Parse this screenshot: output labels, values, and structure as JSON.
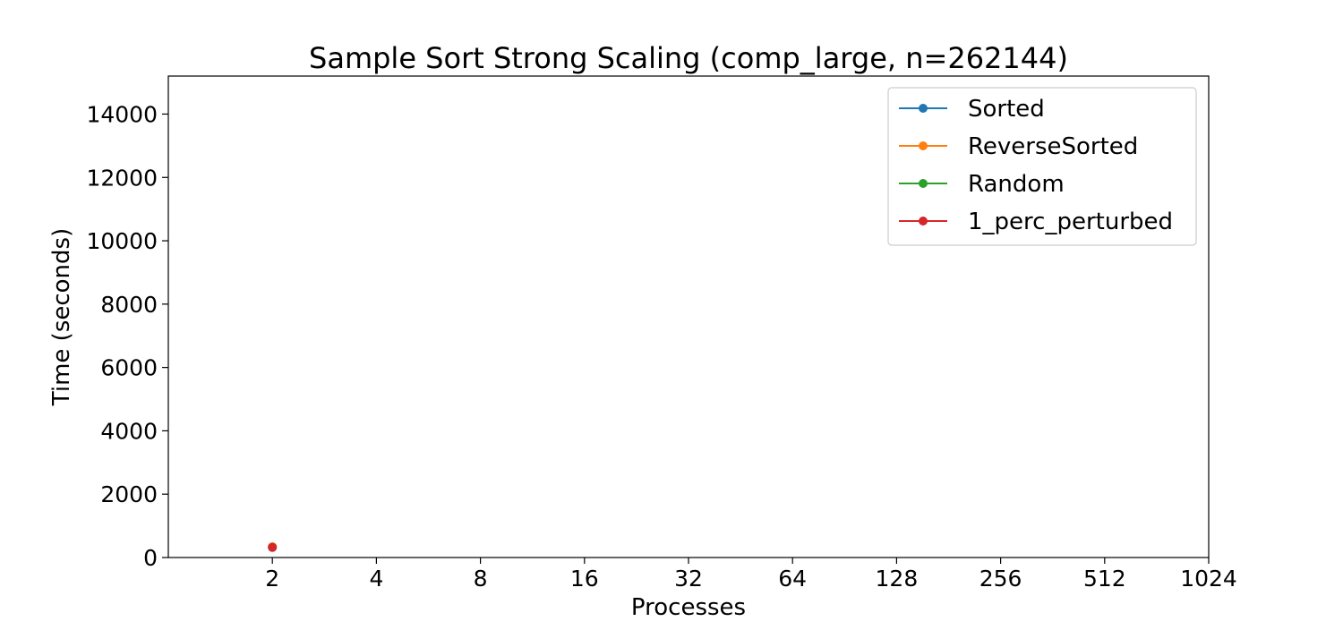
{
  "chart_data": {
    "type": "line",
    "title": "Sample Sort Strong Scaling (comp_large, n=262144)",
    "xlabel": "Processes",
    "ylabel": "Time (seconds)",
    "x_scale": "log2",
    "x_ticks": [
      "2",
      "4",
      "8",
      "16",
      "32",
      "64",
      "128",
      "256",
      "512",
      "1024"
    ],
    "x_tick_values": [
      2,
      4,
      8,
      16,
      32,
      64,
      128,
      256,
      512,
      1024
    ],
    "xlim": [
      1,
      1024
    ],
    "y_ticks": [
      "0",
      "2000",
      "4000",
      "6000",
      "8000",
      "10000",
      "12000",
      "14000"
    ],
    "y_tick_values": [
      0,
      2000,
      4000,
      6000,
      8000,
      10000,
      12000,
      14000
    ],
    "ylim": [
      0,
      15200
    ],
    "grid": false,
    "legend_position": "top-right",
    "series": [
      {
        "name": "Sorted",
        "color": "#1f77b4",
        "x": [
          2
        ],
        "y": [
          330
        ]
      },
      {
        "name": "ReverseSorted",
        "color": "#ff7f0e",
        "x": [
          2
        ],
        "y": [
          340
        ]
      },
      {
        "name": "Random",
        "color": "#2ca02c",
        "x": [
          2
        ],
        "y": [
          320
        ]
      },
      {
        "name": "1_perc_perturbed",
        "color": "#d62728",
        "x": [
          2
        ],
        "y": [
          320
        ]
      }
    ]
  }
}
